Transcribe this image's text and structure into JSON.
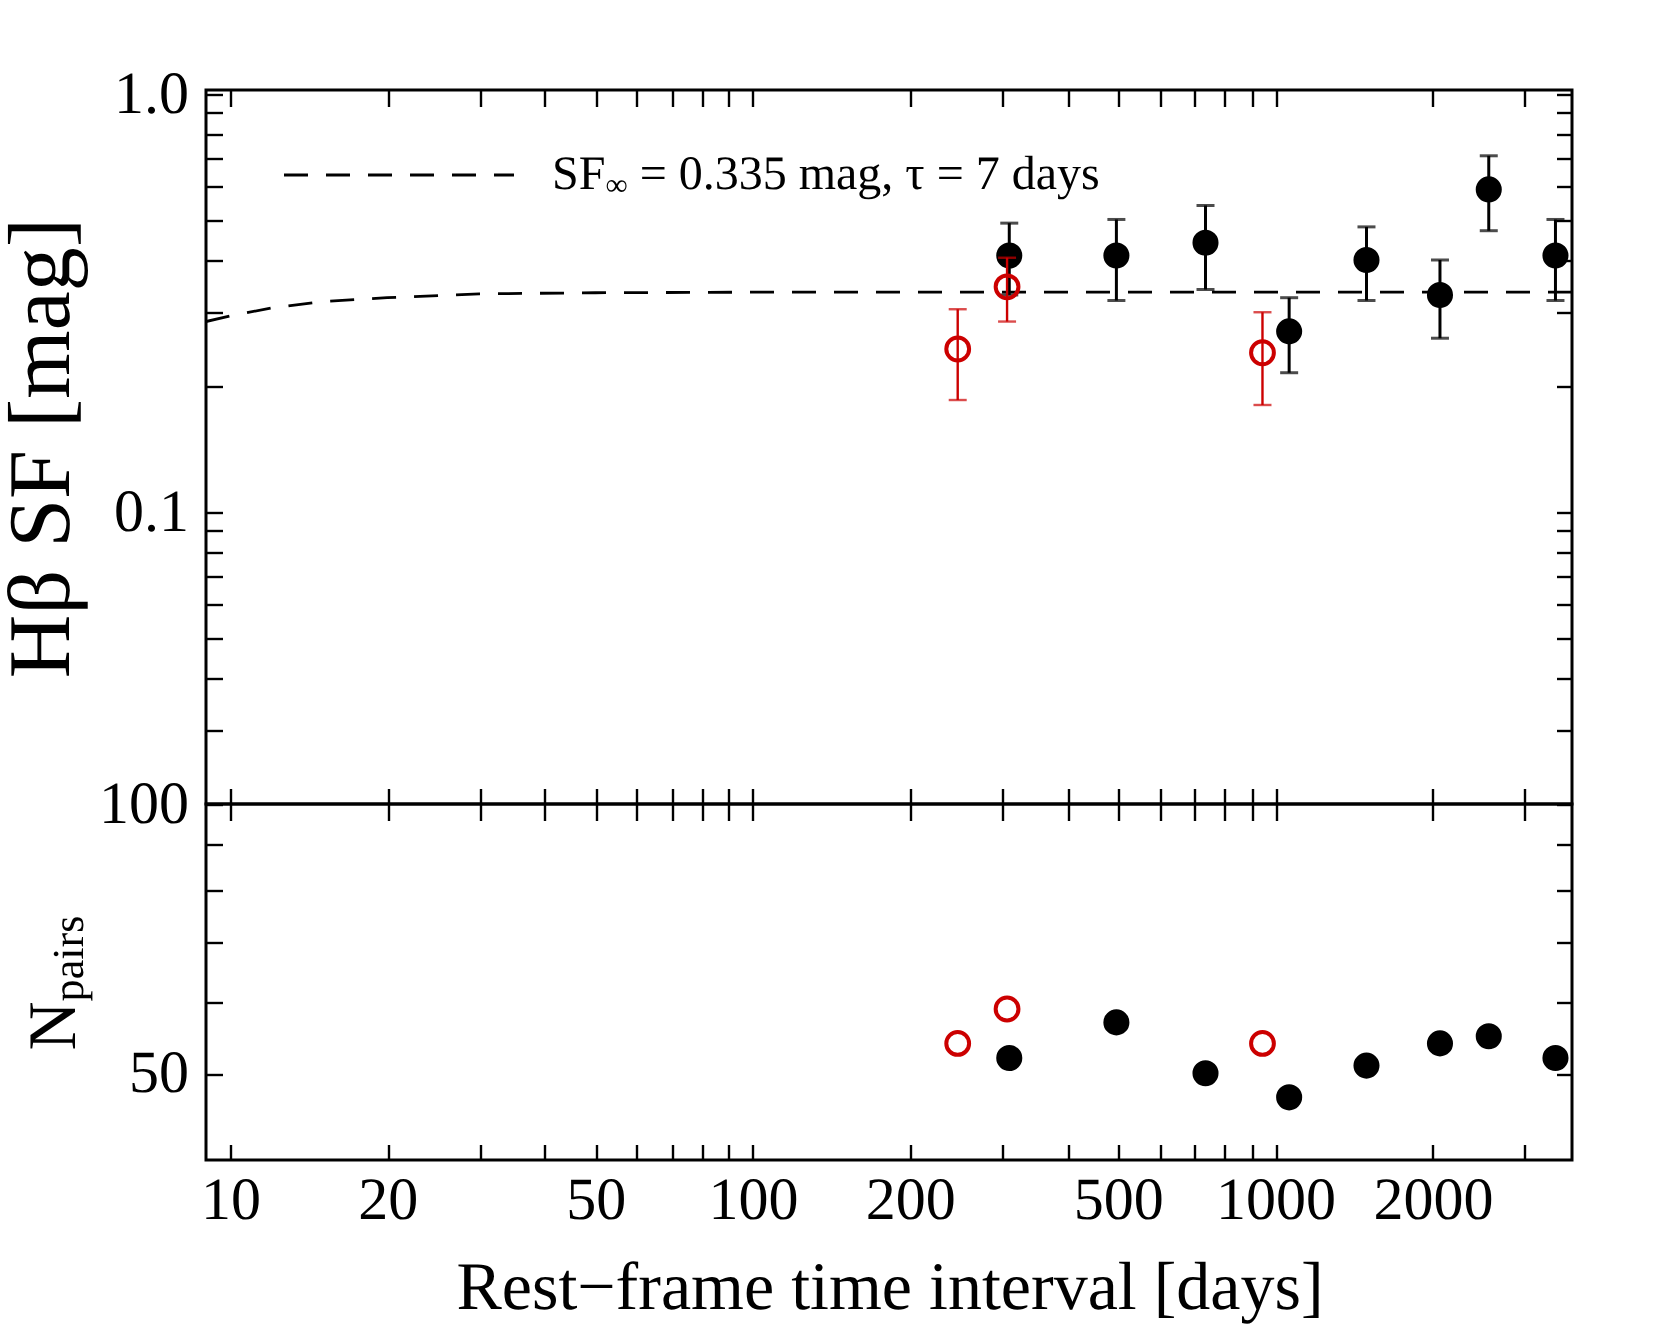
{
  "chart_data": [
    {
      "type": "scatter",
      "ylabel": "Hβ SF [mag]",
      "log": "xy",
      "xlim": [
        9,
        3700
      ],
      "xticks": [
        10,
        20,
        {
          "value": 30,
          "label": null
        },
        {
          "value": 40,
          "label": null
        },
        50,
        {
          "value": 60,
          "label": null
        },
        {
          "value": 70,
          "label": null
        },
        {
          "value": 80,
          "label": null
        },
        {
          "value": 90,
          "label": null
        },
        100,
        200,
        {
          "value": 300,
          "label": null
        },
        {
          "value": 400,
          "label": null
        },
        500,
        {
          "value": 600,
          "label": null
        },
        {
          "value": 700,
          "label": null
        },
        {
          "value": 800,
          "label": null
        },
        {
          "value": 900,
          "label": null
        },
        1000,
        2000,
        {
          "value": 3000,
          "label": null
        }
      ],
      "ylim": [
        0.02,
        1.02
      ],
      "yticks": [
        {
          "value": 0.03,
          "label": null
        },
        {
          "value": 0.04,
          "label": null
        },
        {
          "value": 0.05,
          "label": null
        },
        {
          "value": 0.06,
          "label": null
        },
        {
          "value": 0.07,
          "label": null
        },
        {
          "value": 0.08,
          "label": null
        },
        {
          "value": 0.09,
          "label": null
        },
        0.1,
        {
          "value": 0.2,
          "label": null
        },
        {
          "value": 0.3,
          "label": null
        },
        {
          "value": 0.4,
          "label": null
        },
        {
          "value": 0.5,
          "label": null
        },
        {
          "value": 0.6,
          "label": null
        },
        {
          "value": 0.7,
          "label": null
        },
        {
          "value": 0.8,
          "label": null
        },
        {
          "value": 0.9,
          "label": null
        },
        {
          "value": 1,
          "label": "1.0"
        }
      ],
      "tick_labels": "y",
      "legend": "top left",
      "series": [
        {
          "type": "line",
          "name": "SF$_{∞}$ = 0.335 mag, τ = 7 days",
          "color": "#000000",
          "line_style": "dashed",
          "marker": "none",
          "x": [
            9,
            10,
            12,
            15,
            20,
            30,
            50,
            100,
            3700
          ],
          "values": [
            0.285,
            0.294,
            0.307,
            0.318,
            0.325,
            0.332,
            0.334,
            0.335,
            0.335
          ]
        },
        {
          "color": "#000000",
          "marker": "circle",
          "x": [
            310,
            497,
            736,
            1064,
            1496,
            2068,
            2564,
            3440
          ],
          "values": [
            0.41,
            0.41,
            0.44,
            0.27,
            0.4,
            0.33,
            0.59,
            0.41
          ],
          "errors": [
            0.08,
            0.09,
            0.1,
            0.055,
            0.08,
            0.07,
            0.12,
            0.09
          ]
        },
        {
          "color": "#cc0000",
          "marker": "circle",
          "x": [
            247,
            307,
            946
          ],
          "values": [
            0.245,
            0.345,
            0.24
          ],
          "errors": [
            0.06,
            0.06,
            0.06
          ]
        }
      ]
    },
    {
      "type": "scatter",
      "xlabel": "Rest−frame time interval [days]",
      "ylabel": "N$_{pairs}$",
      "log": "xy",
      "xlim": [
        9,
        3700
      ],
      "xticks": [
        10,
        20,
        {
          "value": 30,
          "label": null
        },
        {
          "value": 40,
          "label": null
        },
        50,
        {
          "value": 60,
          "label": null
        },
        {
          "value": 70,
          "label": null
        },
        {
          "value": 80,
          "label": null
        },
        {
          "value": 90,
          "label": null
        },
        100,
        200,
        {
          "value": 300,
          "label": null
        },
        {
          "value": 400,
          "label": null
        },
        500,
        {
          "value": 600,
          "label": null
        },
        {
          "value": 700,
          "label": null
        },
        {
          "value": 800,
          "label": null
        },
        {
          "value": 900,
          "label": null
        },
        1000,
        2000,
        {
          "value": 3000,
          "label": null
        }
      ],
      "ylim": [
        40,
        100
      ],
      "yticks": [
        50,
        {
          "value": 60,
          "label": null
        },
        {
          "value": 70,
          "label": null
        },
        {
          "value": 80,
          "label": null
        },
        {
          "value": 90,
          "label": null
        },
        100
      ],
      "series": [
        {
          "color": "#000000",
          "marker": "circle",
          "x": [
            310,
            497,
            736,
            1064,
            1496,
            2068,
            2564,
            3440
          ],
          "values": [
            52,
            57,
            50,
            47,
            51,
            54,
            55,
            52
          ]
        },
        {
          "color": "#cc0000",
          "marker": "circle",
          "x": [
            247,
            307,
            946
          ],
          "values": [
            54,
            59,
            54
          ]
        }
      ]
    }
  ]
}
